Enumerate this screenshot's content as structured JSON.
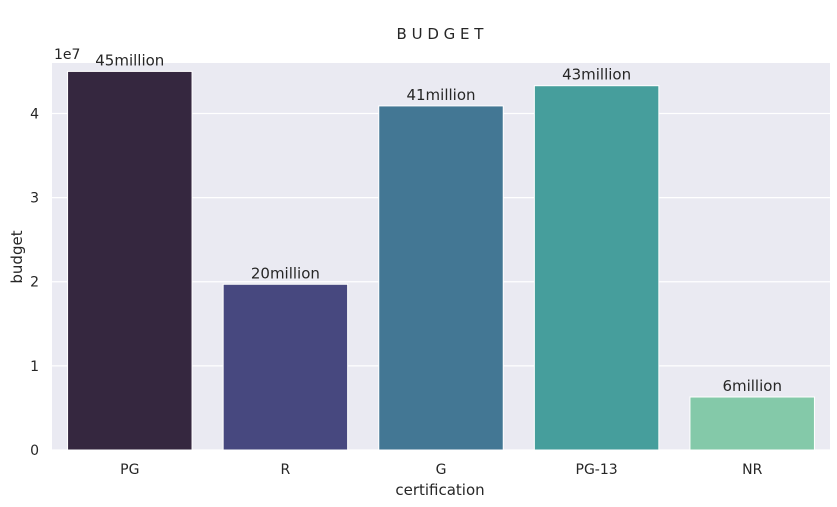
{
  "chart_data": {
    "type": "bar",
    "title": "B U D G E T",
    "xlabel": "certification",
    "ylabel": "budget",
    "y_offset_text": "1e7",
    "categories": [
      "PG",
      "R",
      "G",
      "PG-13",
      "NR"
    ],
    "values": [
      45000000,
      19700000,
      40900000,
      43300000,
      6300000
    ],
    "data_labels": [
      "45million",
      "20million",
      "41million",
      "43million",
      "6million"
    ],
    "colors": [
      "#35273f",
      "#47487f",
      "#437794",
      "#469e9c",
      "#84c9a9"
    ],
    "ylim": [
      0,
      46000000
    ],
    "yticks": [
      0,
      10000000,
      20000000,
      30000000,
      40000000
    ],
    "ytick_labels": [
      "0",
      "1",
      "2",
      "3",
      "4"
    ],
    "grid": true,
    "background": "#eaeaf2"
  }
}
